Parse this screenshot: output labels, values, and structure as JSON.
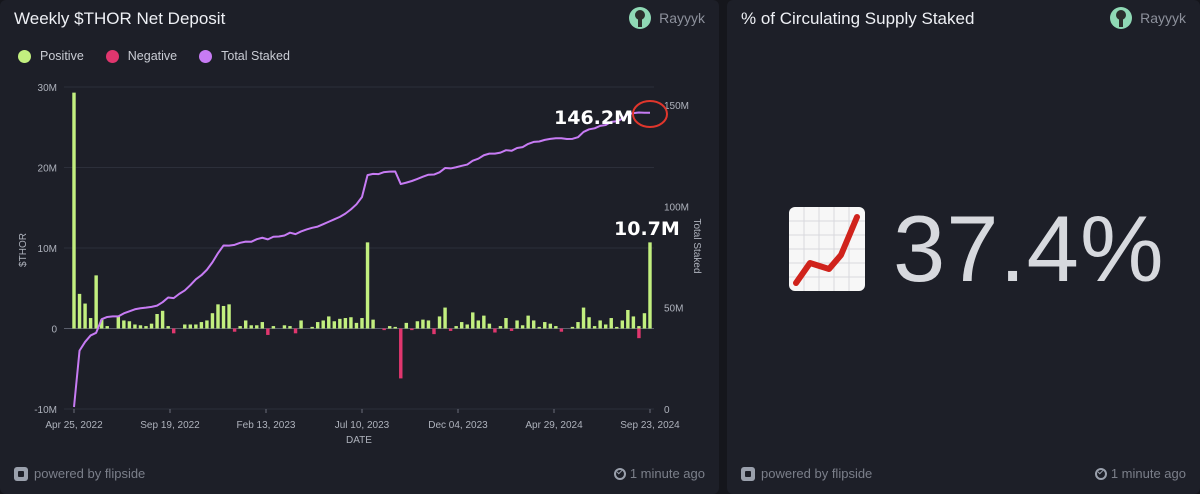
{
  "left_panel": {
    "title": "Weekly $THOR Net Deposit",
    "author": "Rayyyk",
    "footer_brand": "powered by flipside",
    "footer_time": "1 minute ago"
  },
  "right_panel": {
    "title": "% of Circulating Supply Staked",
    "author": "Rayyyk",
    "value": "37.4%",
    "icon": "chart-increasing-icon",
    "footer_brand": "powered by flipside",
    "footer_time": "1 minute ago"
  },
  "colors": {
    "positive": "#c2ef7f",
    "negative": "#e0366e",
    "total_staked": "#c77bf4",
    "annotation_circle": "#e0362c"
  },
  "chart_data": {
    "type": "bar",
    "title": "Weekly $THOR Net Deposit",
    "xlabel": "DATE",
    "ylabel": "$THOR",
    "y2label": "Total Staked",
    "ylim": [
      -10000000,
      30000000
    ],
    "y2lim": [
      0,
      150000000
    ],
    "yticks": [
      "30M",
      "20M",
      "10M",
      "0",
      "-10M"
    ],
    "y2ticks": [
      "150M",
      "100M",
      "50M",
      "0"
    ],
    "x_ticks": [
      "Apr 25, 2022",
      "Sep 19, 2022",
      "Feb 13, 2023",
      "Jul 10, 2023",
      "Dec 04, 2023",
      "Apr 29, 2024",
      "Sep 23, 2024"
    ],
    "legend": {
      "placement": "top-left",
      "entries": [
        "Positive",
        "Negative",
        "Total Staked"
      ]
    },
    "annotations": [
      "146.2M",
      "10.7M"
    ],
    "series": [
      {
        "name": "Positive",
        "values": [
          29300000,
          4300000,
          3100000,
          1300000,
          6600000,
          1100000,
          300000,
          0,
          1500000,
          1000000,
          900000,
          500000,
          400000,
          300000,
          600000,
          1800000,
          2200000,
          300000,
          0,
          0,
          500000,
          500000,
          500000,
          800000,
          1000000,
          1900000,
          3000000,
          2800000,
          3000000,
          0,
          300000,
          1000000,
          400000,
          400000,
          800000,
          0,
          300000,
          0,
          400000,
          300000,
          0,
          1000000,
          0,
          200000,
          800000,
          1000000,
          1500000,
          900000,
          1200000,
          1300000,
          1400000,
          700000,
          1300000,
          10700000,
          1100000,
          0,
          0,
          300000,
          200000,
          0,
          700000,
          0,
          900000,
          1100000,
          1000000,
          0,
          1500000,
          2600000,
          0,
          300000,
          800000,
          500000,
          2000000,
          1000000,
          1600000,
          600000,
          0,
          300000,
          1300000,
          0,
          1000000,
          400000,
          1600000,
          1000000,
          200000,
          800000,
          600000,
          300000,
          0,
          0,
          200000,
          800000,
          2600000,
          1400000,
          300000,
          1000000,
          500000,
          1300000,
          200000,
          1000000,
          2300000,
          1500000,
          300000,
          1900000,
          10700000
        ],
        "color": "#c2ef7f"
      },
      {
        "name": "Negative",
        "values": [
          0,
          0,
          0,
          0,
          0,
          0,
          0,
          0,
          0,
          0,
          0,
          0,
          0,
          0,
          0,
          0,
          0,
          0,
          -600000,
          0,
          0,
          0,
          0,
          0,
          0,
          0,
          0,
          0,
          0,
          -400000,
          0,
          0,
          0,
          0,
          0,
          -800000,
          0,
          0,
          0,
          0,
          -600000,
          0,
          0,
          0,
          0,
          0,
          0,
          0,
          0,
          0,
          0,
          0,
          0,
          0,
          0,
          0,
          -200000,
          0,
          0,
          -6200000,
          0,
          -200000,
          0,
          0,
          0,
          -700000,
          0,
          0,
          -300000,
          0,
          0,
          0,
          0,
          0,
          0,
          0,
          -500000,
          0,
          0,
          -300000,
          0,
          0,
          0,
          0,
          0,
          0,
          0,
          0,
          -400000,
          0,
          0,
          0,
          0,
          0,
          0,
          0,
          0,
          0,
          0,
          0,
          0,
          0,
          -1200000,
          0,
          0
        ],
        "color": "#e0366e"
      },
      {
        "name": "Total Staked",
        "axis": "right",
        "values": [
          1000000,
          28800000,
          33100000,
          36300000,
          37600000,
          44300000,
          45400000,
          45700000,
          45700000,
          47200000,
          48200000,
          49200000,
          49700000,
          50000000,
          50400000,
          51000000,
          52700000,
          55000000,
          54700000,
          56800000,
          58500000,
          61100000,
          64000000,
          66000000,
          68700000,
          72400000,
          76900000,
          80700000,
          80600000,
          81000000,
          82000000,
          82600000,
          82500000,
          83800000,
          84500000,
          83700000,
          85000000,
          85100000,
          85600000,
          87000000,
          86300000,
          87600000,
          88600000,
          89400000,
          90000000,
          91200000,
          92400000,
          93600000,
          94800000,
          96400000,
          98500000,
          101000000,
          104600000,
          115400000,
          116000000,
          115900000,
          116900000,
          117100000,
          117200000,
          111000000,
          111700000,
          112500000,
          113500000,
          114600000,
          115600000,
          115700000,
          116800000,
          118900000,
          118700000,
          119300000,
          120000000,
          120600000,
          122500000,
          123500000,
          125200000,
          126000000,
          126000000,
          126500000,
          127700000,
          127400000,
          128800000,
          129200000,
          130800000,
          131800000,
          132000000,
          132800000,
          133300000,
          133600000,
          133600000,
          133200000,
          133300000,
          134100000,
          136700000,
          138000000,
          138500000,
          139700000,
          140100000,
          141700000,
          142000000,
          143200000,
          145500000,
          146000000,
          146300000,
          146200000,
          146200000
        ],
        "color": "#c77bf4"
      }
    ]
  }
}
